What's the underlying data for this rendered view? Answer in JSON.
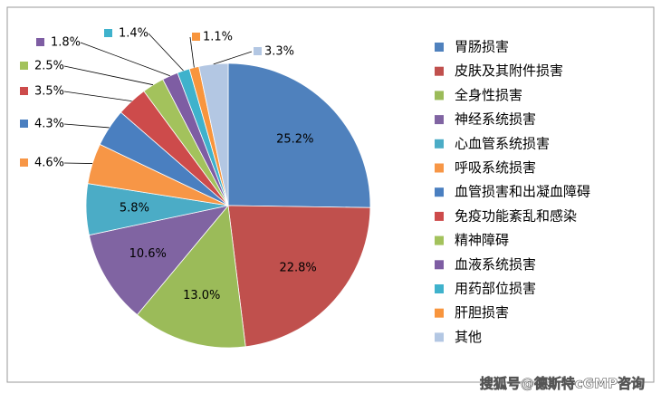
{
  "chart_data": {
    "type": "pie",
    "categories": [
      "胃肠损害",
      "皮肤及其附件损害",
      "全身性损害",
      "神经系统损害",
      "心血管系统损害",
      "呼吸系统损害",
      "血管损害和出凝血障碍",
      "免疫功能紊乱和感染",
      "精神障碍",
      "血液系统损害",
      "用药部位损害",
      "肝胆损害",
      "其他"
    ],
    "values": [
      25.2,
      22.8,
      13.0,
      10.6,
      5.8,
      4.6,
      4.3,
      3.5,
      2.5,
      1.8,
      1.4,
      1.1,
      3.3
    ],
    "value_labels": [
      "25.2%",
      "22.8%",
      "13.0%",
      "10.6%",
      "5.8%",
      "4.6%",
      "4.3%",
      "3.5%",
      "2.5%",
      "1.8%",
      "1.4%",
      "1.1%",
      "3.3%"
    ],
    "colors": [
      "#4F81BD",
      "#C0504D",
      "#9BBB59",
      "#8064A2",
      "#4BACC6",
      "#F79646",
      "#4A7FC0",
      "#CD4B4B",
      "#A3C25C",
      "#7E5DA3",
      "#3FB2CC",
      "#F8953D",
      "#B3C7E3"
    ],
    "legend": "right",
    "watermark": "搜狐号@德斯特cGMP咨询"
  }
}
